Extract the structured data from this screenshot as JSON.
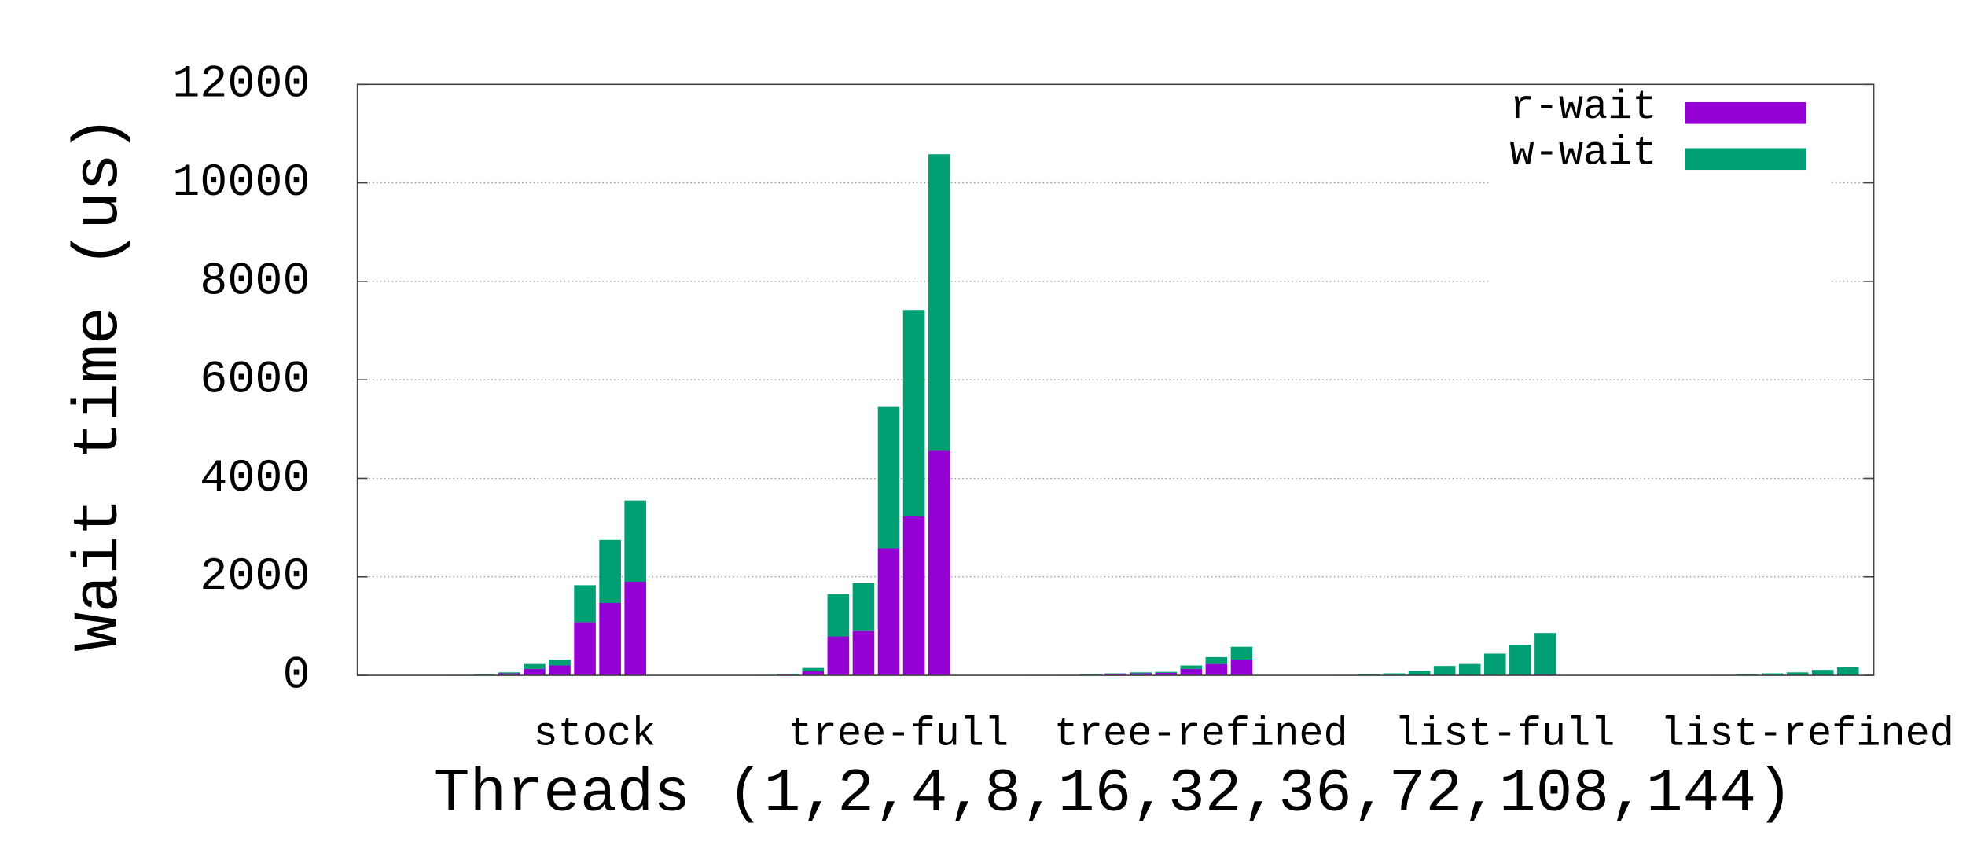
{
  "chart_data": {
    "type": "bar",
    "stacked": true,
    "y_label": "Wait time (us)",
    "x_label": "Threads (1,2,4,8,16,32,36,72,108,144)",
    "categories": [
      "stock",
      "tree-full",
      "tree-refined",
      "list-full",
      "list-refined"
    ],
    "series": [
      {
        "name": "r-wait",
        "color": "#9400d3",
        "values": [
          [
            0,
            0,
            5,
            10,
            40,
            130,
            200,
            1080,
            1470,
            1900
          ],
          [
            0,
            0,
            5,
            15,
            80,
            790,
            900,
            2580,
            3230,
            4560
          ],
          [
            0,
            5,
            5,
            10,
            30,
            40,
            50,
            130,
            230,
            320
          ],
          [
            0,
            0,
            0,
            0,
            5,
            5,
            5,
            10,
            15,
            20
          ],
          [
            0,
            0,
            0,
            0,
            0,
            0,
            0,
            0,
            0,
            0
          ]
        ]
      },
      {
        "name": "w-wait",
        "color": "#009e73",
        "values": [
          [
            0,
            0,
            5,
            10,
            20,
            100,
            120,
            750,
            1280,
            1650
          ],
          [
            0,
            0,
            5,
            15,
            70,
            860,
            970,
            2870,
            4190,
            6020
          ],
          [
            0,
            5,
            5,
            10,
            10,
            20,
            20,
            70,
            140,
            260
          ],
          [
            0,
            10,
            20,
            40,
            85,
            185,
            225,
            430,
            605,
            840
          ],
          [
            0,
            0,
            0,
            5,
            10,
            20,
            40,
            60,
            110,
            170
          ]
        ]
      }
    ],
    "ylim": [
      0,
      12000
    ],
    "yticks": [
      0,
      2000,
      4000,
      6000,
      8000,
      10000,
      12000
    ],
    "grid": true,
    "legend": "top-right"
  }
}
